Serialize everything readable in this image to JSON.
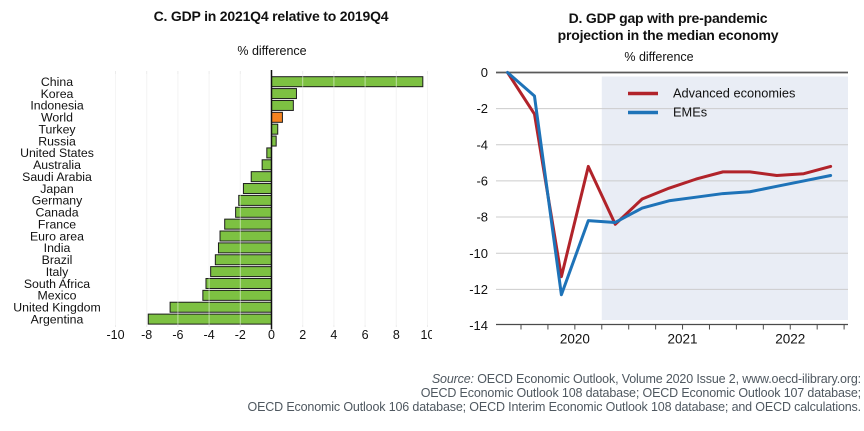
{
  "chart_data": [
    {
      "id": "panel-c",
      "type": "bar",
      "orientation": "horizontal",
      "title": "C. GDP in 2021Q4 relative to 2019Q4",
      "subtitle": "% difference",
      "categories": [
        "China",
        "Korea",
        "Indonesia",
        "World",
        "Turkey",
        "Russia",
        "United States",
        "Australia",
        "Saudi Arabia",
        "Japan",
        "Germany",
        "Canada",
        "France",
        "Euro area",
        "India",
        "Brazil",
        "Italy",
        "South Africa",
        "Mexico",
        "United Kingdom",
        "Argentina"
      ],
      "values": [
        9.7,
        1.6,
        1.4,
        0.7,
        0.4,
        0.3,
        -0.3,
        -0.6,
        -1.3,
        -1.8,
        -2.1,
        -2.3,
        -3.0,
        -3.3,
        -3.4,
        -3.6,
        -3.9,
        -4.2,
        -4.4,
        -6.5,
        -7.9
      ],
      "xlim": [
        -10,
        10
      ],
      "xticks": [
        -10,
        -8,
        -6,
        -4,
        -2,
        0,
        2,
        4,
        6,
        8,
        10
      ],
      "grid": true,
      "highlight_category": "World",
      "colors": {
        "bar": "#7dc142",
        "highlight": "#f5821f",
        "bar_border": "#1c1c1c",
        "gridline": "#ebebeb",
        "axis": "#111111"
      }
    },
    {
      "id": "panel-d",
      "type": "line",
      "title": "D. GDP gap with pre-pandemic projection in the median economy",
      "title_lines": [
        "D. GDP gap with pre-pandemic",
        "projection in the median economy"
      ],
      "subtitle": "% difference",
      "x_quarters": [
        "2019Q4",
        "2020Q1",
        "2020Q2",
        "2020Q3",
        "2020Q4",
        "2021Q1",
        "2021Q2",
        "2021Q3",
        "2021Q4",
        "2022Q1",
        "2022Q2",
        "2022Q3",
        "2022Q4"
      ],
      "series": [
        {
          "name": "Advanced economies",
          "color": "#b1232a",
          "values": [
            0,
            -2.3,
            -11.3,
            -5.2,
            -8.4,
            -7.0,
            -6.4,
            -5.9,
            -5.5,
            -5.5,
            -5.7,
            -5.6,
            -5.2
          ]
        },
        {
          "name": "EMEs",
          "color": "#1e73b8",
          "values": [
            0,
            -1.3,
            -12.3,
            -8.2,
            -8.3,
            -7.5,
            -7.1,
            -6.9,
            -6.7,
            -6.6,
            -6.3,
            -6.0,
            -5.7
          ]
        }
      ],
      "ylim": [
        -14,
        0
      ],
      "yticks": [
        0,
        -2,
        -4,
        -6,
        -8,
        -10,
        -12,
        -14
      ],
      "x_year_labels": [
        "2020",
        "2021",
        "2022"
      ],
      "legend_position": "top-inside",
      "grid": true,
      "projection_shading": {
        "start_quarter": "2020Q4",
        "color": "#e9edf5"
      },
      "colors": {
        "gridline": "#cccccc",
        "zero_line": "#5a5a5a",
        "axis": "#4a4a4a"
      }
    }
  ],
  "footer": {
    "source_label": "Source:",
    "line1_rest": " OECD Economic Outlook, Volume 2020 Issue 2, www.oecd-ilibrary.org:",
    "line2": "OECD Economic Outlook 108 database; OECD Economic Outlook 107 database;",
    "line3": "OECD Economic Outlook 106 database; OECD Interim Economic Outlook 108 database; and OECD calculations."
  }
}
